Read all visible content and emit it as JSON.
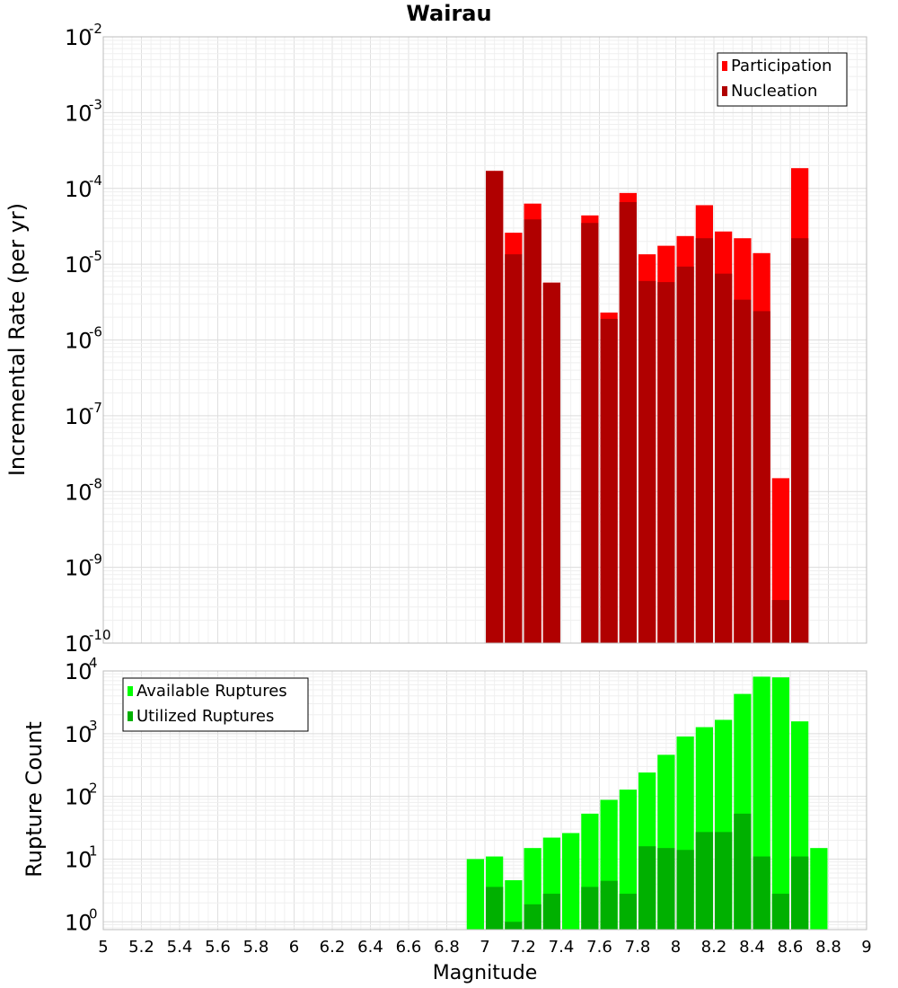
{
  "chart_data": [
    {
      "type": "bar",
      "title": "Wairau",
      "ylabel": "Incremental Rate (per yr)",
      "xlabel": "",
      "yscale": "log",
      "ylim": [
        1e-10,
        0.01
      ],
      "xlim": [
        5,
        9
      ],
      "grid": true,
      "legend_position": "top-right",
      "bin_width": 0.1,
      "series": [
        {
          "name": "Participation",
          "color": "#ff0000",
          "x": [
            7.05,
            7.15,
            7.25,
            7.35,
            7.55,
            7.65,
            7.75,
            7.85,
            7.95,
            8.05,
            8.15,
            8.25,
            8.35,
            8.45,
            8.55,
            8.65
          ],
          "values": [
            0.00017,
            2.6e-05,
            6.3e-05,
            5.7e-06,
            4.4e-05,
            2.3e-06,
            8.7e-05,
            1.35e-05,
            1.75e-05,
            2.35e-05,
            6e-05,
            2.7e-05,
            2.2e-05,
            1.4e-05,
            1.5e-08,
            0.000185
          ]
        },
        {
          "name": "Nucleation",
          "color": "#b00000",
          "x": [
            7.05,
            7.15,
            7.25,
            7.35,
            7.55,
            7.65,
            7.75,
            7.85,
            7.95,
            8.05,
            8.15,
            8.25,
            8.35,
            8.45,
            8.55,
            8.65
          ],
          "values": [
            0.00017,
            1.35e-05,
            3.9e-05,
            5.7e-06,
            3.5e-05,
            1.9e-06,
            6.6e-05,
            6e-06,
            5.8e-06,
            9.3e-06,
            2.2e-05,
            7.5e-06,
            3.4e-06,
            2.4e-06,
            3.7e-10,
            2.2e-05
          ]
        }
      ]
    },
    {
      "type": "bar",
      "title": "",
      "ylabel": "Rupture Count",
      "xlabel": "Magnitude",
      "yscale": "log",
      "ylim": [
        0.75,
        10000
      ],
      "xlim": [
        5,
        9
      ],
      "grid": true,
      "legend_position": "top-left",
      "bin_width": 0.1,
      "series": [
        {
          "name": "Available Ruptures",
          "color": "#00ff00",
          "x": [
            6.95,
            7.05,
            7.15,
            7.25,
            7.35,
            7.45,
            7.55,
            7.65,
            7.75,
            7.85,
            7.95,
            8.05,
            8.15,
            8.25,
            8.35,
            8.45,
            8.55,
            8.65,
            8.75
          ],
          "values": [
            10,
            11,
            4.6,
            15,
            22,
            26,
            53,
            88,
            128,
            240,
            460,
            900,
            1270,
            1660,
            4300,
            8100,
            7900,
            1570,
            15
          ]
        },
        {
          "name": "Utilized Ruptures",
          "color": "#00b000",
          "x": [
            6.95,
            7.05,
            7.15,
            7.25,
            7.35,
            7.45,
            7.55,
            7.65,
            7.75,
            7.85,
            7.95,
            8.05,
            8.15,
            8.25,
            8.35,
            8.45,
            8.55,
            8.65,
            8.75
          ],
          "values": [
            0,
            3.6,
            1,
            1.9,
            2.8,
            0,
            3.6,
            4.5,
            2.8,
            16,
            15,
            14,
            27,
            27,
            53,
            11,
            2.8,
            11,
            0
          ]
        }
      ]
    }
  ],
  "x_ticks": [
    "5",
    "5.2",
    "5.4",
    "5.6",
    "5.8",
    "6",
    "6.2",
    "6.4",
    "6.6",
    "6.8",
    "7",
    "7.2",
    "7.4",
    "7.6",
    "7.8",
    "8",
    "8.2",
    "8.4",
    "8.6",
    "8.8",
    "9"
  ],
  "top_y_ticks": [
    {
      "base": "10",
      "exp": "-2"
    },
    {
      "base": "10",
      "exp": "-3"
    },
    {
      "base": "10",
      "exp": "-4"
    },
    {
      "base": "10",
      "exp": "-5"
    },
    {
      "base": "10",
      "exp": "-6"
    },
    {
      "base": "10",
      "exp": "-7"
    },
    {
      "base": "10",
      "exp": "-8"
    },
    {
      "base": "10",
      "exp": "-9"
    },
    {
      "base": "10",
      "exp": "-10"
    }
  ],
  "bottom_y_ticks": [
    {
      "base": "10",
      "exp": "4"
    },
    {
      "base": "10",
      "exp": "3"
    },
    {
      "base": "10",
      "exp": "2"
    },
    {
      "base": "10",
      "exp": "1"
    },
    {
      "base": "10",
      "exp": "0"
    }
  ]
}
